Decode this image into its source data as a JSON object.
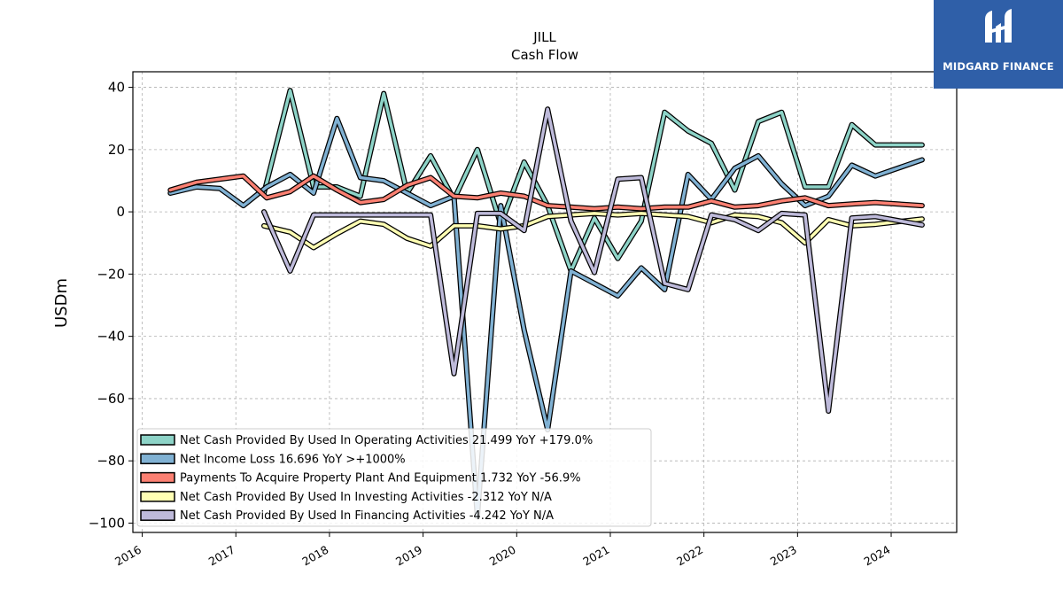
{
  "logo": {
    "text": "MIDGARD FINANCE"
  },
  "chart_data": {
    "type": "line",
    "title": "JILL",
    "subtitle": "Cash Flow",
    "xlabel": "",
    "ylabel": "USDm",
    "xlim": [
      2015.9,
      2024.7
    ],
    "ylim": [
      -103,
      45
    ],
    "x_ticks": [
      2016,
      2017,
      2018,
      2019,
      2020,
      2021,
      2022,
      2023,
      2024
    ],
    "x_tick_labels": [
      "2016",
      "2017",
      "2018",
      "2019",
      "2020",
      "2021",
      "2022",
      "2023",
      "2024"
    ],
    "y_ticks": [
      40,
      20,
      0,
      -20,
      -40,
      -60,
      -80,
      -100
    ],
    "y_tick_labels": [
      "40",
      "20",
      "0",
      "−20",
      "−40",
      "−60",
      "−80",
      "−100"
    ],
    "grid": true,
    "legend_position": "lower-left",
    "series": [
      {
        "name": "Net Cash Provided By Used In Operating Activities",
        "legend_label": "Net Cash Provided By Used In Operating Activities  21.499 YoY +179.0%",
        "color": "#8dd3c7",
        "x": [
          2017.3,
          2017.58,
          2017.83,
          2018.08,
          2018.33,
          2018.58,
          2018.83,
          2019.08,
          2019.33,
          2019.58,
          2019.83,
          2020.08,
          2020.33,
          2020.58,
          2020.83,
          2021.08,
          2021.33,
          2021.58,
          2021.83,
          2022.08,
          2022.33,
          2022.58,
          2022.83,
          2023.08,
          2023.33,
          2023.58,
          2023.83,
          2024.33
        ],
        "y": [
          6,
          39,
          8,
          8,
          5,
          38,
          6,
          18,
          4,
          20,
          -4,
          16,
          2,
          -19,
          -2,
          -15,
          -3,
          32,
          26,
          22,
          7,
          29,
          32,
          8,
          8,
          28,
          21.5,
          21.5
        ]
      },
      {
        "name": "Net Income Loss",
        "legend_label": "Net Income Loss  16.696 YoY >+1000%",
        "color": "#80b1d3",
        "x": [
          2016.3,
          2016.58,
          2016.83,
          2017.08,
          2017.33,
          2017.58,
          2017.83,
          2018.08,
          2018.33,
          2018.58,
          2018.83,
          2019.08,
          2019.33,
          2019.58,
          2019.83,
          2020.08,
          2020.33,
          2020.58,
          2020.83,
          2021.08,
          2021.33,
          2021.58,
          2021.83,
          2022.08,
          2022.33,
          2022.58,
          2022.83,
          2023.08,
          2023.33,
          2023.58,
          2023.83,
          2024.33
        ],
        "y": [
          6,
          8,
          7.5,
          2,
          8,
          12,
          6,
          30,
          11,
          10,
          6,
          2,
          5,
          -98,
          2,
          -38,
          -70,
          -19,
          -23,
          -27,
          -18,
          -25,
          12,
          4,
          14,
          18,
          9,
          2,
          5,
          15,
          11.5,
          16.7
        ]
      },
      {
        "name": "Payments To Acquire Property Plant And Equipment",
        "legend_label": "Payments To Acquire Property Plant And Equipment  1.732 YoY -56.9%",
        "color": "#fb8072",
        "x": [
          2016.3,
          2016.58,
          2016.83,
          2017.08,
          2017.33,
          2017.58,
          2017.83,
          2018.08,
          2018.33,
          2018.58,
          2018.83,
          2019.08,
          2019.33,
          2019.58,
          2019.83,
          2020.08,
          2020.33,
          2020.58,
          2020.83,
          2021.08,
          2021.33,
          2021.58,
          2021.83,
          2022.08,
          2022.33,
          2022.58,
          2022.83,
          2023.08,
          2023.33,
          2023.58,
          2023.83,
          2024.33
        ],
        "y": [
          7,
          9.5,
          10.5,
          11.5,
          4.5,
          6.5,
          11.5,
          7,
          3,
          4,
          8.5,
          11,
          5,
          4.5,
          6,
          5,
          2,
          1.5,
          1,
          1.5,
          1,
          1.5,
          1.5,
          3.5,
          1.5,
          2,
          3.5,
          4.5,
          2,
          2.5,
          3,
          2
        ]
      },
      {
        "name": "Net Cash Provided By Used In Investing Activities",
        "legend_label": "Net Cash Provided By Used In Investing Activities  -2.312 YoY N/A",
        "color": "#ffffb3",
        "x": [
          2017.3,
          2017.58,
          2017.83,
          2018.08,
          2018.33,
          2018.58,
          2018.83,
          2019.08,
          2019.33,
          2019.58,
          2019.83,
          2020.08,
          2020.33,
          2020.58,
          2020.83,
          2021.08,
          2021.33,
          2021.58,
          2021.83,
          2022.08,
          2022.33,
          2022.58,
          2022.83,
          2023.08,
          2023.33,
          2023.58,
          2023.83,
          2024.33
        ],
        "y": [
          -4.5,
          -6.5,
          -11.5,
          -7,
          -3,
          -4,
          -8.5,
          -11,
          -4.5,
          -4.5,
          -5.5,
          -4.5,
          -1.5,
          -1,
          -0.5,
          -1,
          -0.5,
          -1,
          -1.5,
          -3.5,
          -1,
          -1.5,
          -3.5,
          -10,
          -2.5,
          -4.5,
          -4,
          -2.3
        ]
      },
      {
        "name": "Net Cash Provided By Used In Financing Activities",
        "legend_label": "Net Cash Provided By Used In Financing Activities  -4.242 YoY N/A",
        "color": "#bebada",
        "x": [
          2017.3,
          2017.58,
          2017.83,
          2018.08,
          2018.33,
          2018.58,
          2018.83,
          2019.08,
          2019.33,
          2019.58,
          2019.83,
          2020.08,
          2020.33,
          2020.58,
          2020.83,
          2021.08,
          2021.33,
          2021.58,
          2021.83,
          2022.08,
          2022.33,
          2022.58,
          2022.83,
          2023.08,
          2023.33,
          2023.58,
          2023.83,
          2024.33
        ],
        "y": [
          0,
          -19,
          -1,
          -1,
          -1,
          -1,
          -1,
          -1,
          -52,
          -0.5,
          -0.5,
          -6,
          33,
          -3,
          -19.5,
          10.5,
          11,
          -23,
          -25,
          -1,
          -2.5,
          -6,
          -0.5,
          -1,
          -64,
          -2,
          -1.5,
          -4.2
        ]
      }
    ]
  }
}
